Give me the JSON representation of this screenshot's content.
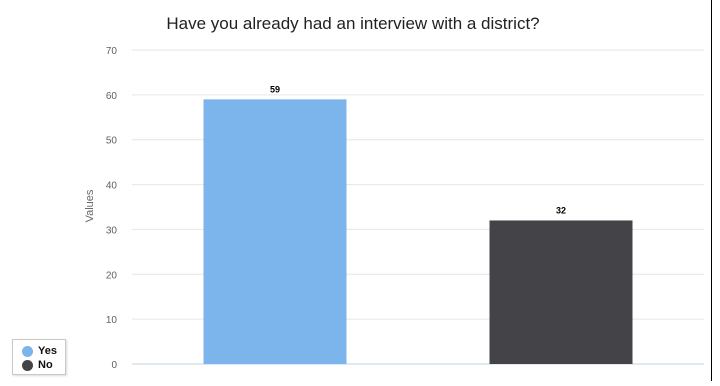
{
  "chart_data": {
    "type": "bar",
    "title": "Have you already had an interview with a district?",
    "ylabel": "Values",
    "xlabel": "",
    "ylim": [
      0,
      70
    ],
    "yticks": [
      0,
      10,
      20,
      30,
      40,
      50,
      60,
      70
    ],
    "grid": true,
    "legend_position": "bottom-left",
    "series": [
      {
        "name": "Yes",
        "value": 59,
        "color": "#7cb5ec"
      },
      {
        "name": "No",
        "value": 32,
        "color": "#434348"
      }
    ]
  }
}
